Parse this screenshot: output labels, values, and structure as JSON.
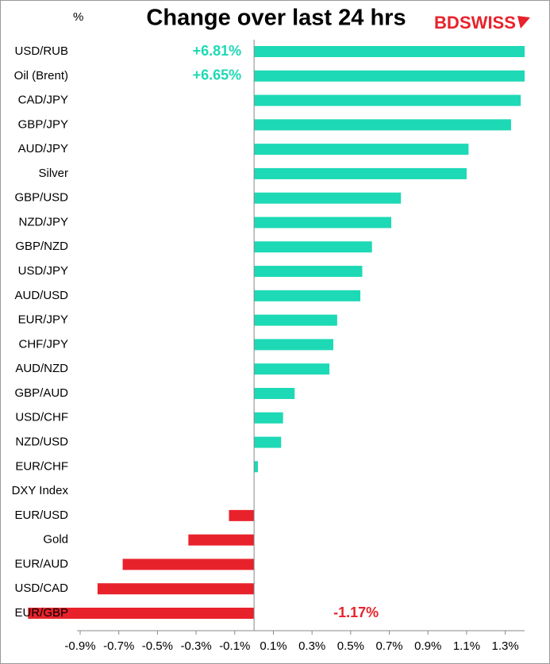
{
  "chart_data": {
    "type": "barh",
    "title": "Change over last 24 hrs",
    "logo": [
      "BD",
      "SWISS"
    ],
    "unit_label": "%",
    "categories": [
      "USD/RUB",
      "Oil (Brent)",
      "CAD/JPY",
      "GBP/JPY",
      "AUD/JPY",
      "Silver",
      "GBP/USD",
      "NZD/JPY",
      "GBP/NZD",
      "USD/JPY",
      "AUD/USD",
      "EUR/JPY",
      "CHF/JPY",
      "AUD/NZD",
      "GBP/AUD",
      "USD/CHF",
      "NZD/USD",
      "EUR/CHF",
      "DXY Index",
      "EUR/USD",
      "Gold",
      "EUR/AUD",
      "USD/CAD",
      "EUR/GBP"
    ],
    "values": [
      6.81,
      6.65,
      1.38,
      1.33,
      1.11,
      1.1,
      0.76,
      0.71,
      0.61,
      0.56,
      0.55,
      0.43,
      0.41,
      0.39,
      0.21,
      0.15,
      0.14,
      0.02,
      0.0,
      -0.13,
      -0.34,
      -0.68,
      -0.81,
      -1.17
    ],
    "value_labels": [
      "+6.81%",
      "+6.65%",
      null,
      null,
      null,
      null,
      null,
      null,
      null,
      null,
      null,
      null,
      null,
      null,
      null,
      null,
      null,
      null,
      null,
      null,
      null,
      null,
      null,
      "-1.17%"
    ],
    "color_positive": "#1dd9b5",
    "color_negative": "#e8222b",
    "xlim": [
      -0.9,
      1.4
    ],
    "xticks": [
      {
        "value": -0.9,
        "label": "-0.9%"
      },
      {
        "value": -0.7,
        "label": "-0.7%"
      },
      {
        "value": -0.5,
        "label": "-0.5%"
      },
      {
        "value": -0.3,
        "label": "-0.3%"
      },
      {
        "value": -0.1,
        "label": "-0.1%"
      },
      {
        "value": 0.1,
        "label": "0.1%"
      },
      {
        "value": 0.3,
        "label": "0.3%"
      },
      {
        "value": 0.5,
        "label": "0.5%"
      },
      {
        "value": 0.7,
        "label": "0.7%"
      },
      {
        "value": 0.9,
        "label": "0.9%"
      },
      {
        "value": 1.1,
        "label": "1.1%"
      },
      {
        "value": 1.3,
        "label": "1.3%"
      }
    ]
  }
}
